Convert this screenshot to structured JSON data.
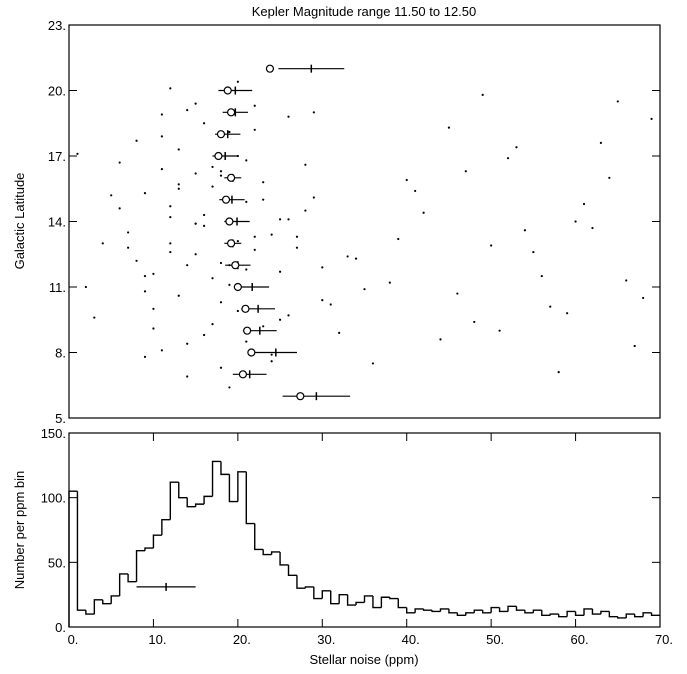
{
  "chart_data": [
    {
      "type": "scatter",
      "title": "Kepler Magnitude range 11.50 to 12.50",
      "y_label": "Galactic Latitude",
      "xlim": [
        0,
        70
      ],
      "ylim": [
        5,
        23
      ],
      "yticks": [
        {
          "value": 5,
          "label": "5."
        },
        {
          "value": 8,
          "label": "8."
        },
        {
          "value": 11,
          "label": "11."
        },
        {
          "value": 14,
          "label": "14."
        },
        {
          "value": 17,
          "label": "17."
        },
        {
          "value": 20,
          "label": "20."
        },
        {
          "value": 23,
          "label": "23."
        }
      ],
      "x": [
        12,
        15,
        18,
        9,
        22,
        25,
        11,
        14,
        17,
        20,
        8,
        13,
        16,
        19,
        23,
        27,
        10,
        12,
        21,
        24,
        7,
        15,
        18,
        26,
        30,
        11,
        14,
        19,
        22,
        9,
        13,
        16,
        20,
        28,
        33,
        12,
        17,
        21,
        25,
        8,
        10,
        15,
        18,
        23,
        31,
        14,
        19,
        22,
        6,
        11,
        16,
        20,
        24,
        35,
        13,
        17,
        21,
        9,
        12,
        15,
        18,
        26,
        29,
        38,
        42,
        45,
        48,
        52,
        55,
        58,
        62,
        65,
        68,
        40,
        44,
        50,
        53,
        57,
        61,
        66,
        69,
        36,
        39,
        47,
        51,
        56,
        60,
        63,
        67,
        34,
        41,
        46,
        49,
        54,
        59,
        64,
        4,
        2,
        5,
        3,
        1,
        7,
        6,
        26,
        28,
        32,
        30,
        27,
        24,
        22,
        20,
        17,
        14,
        11,
        9,
        13,
        16,
        19,
        23,
        10,
        12,
        15,
        18,
        21,
        25,
        29
      ],
      "y": [
        14.2,
        12.5,
        16.1,
        10.8,
        13.3,
        11.7,
        18.9,
        8.4,
        15.6,
        9.9,
        12.2,
        17.3,
        13.8,
        11.1,
        15.0,
        12.8,
        9.1,
        14.7,
        16.8,
        7.6,
        13.5,
        19.4,
        10.3,
        14.1,
        11.9,
        16.4,
        6.9,
        12.0,
        18.2,
        15.3,
        10.6,
        8.8,
        13.1,
        16.6,
        12.4,
        20.1,
        11.4,
        14.9,
        9.5,
        17.7,
        11.6,
        13.9,
        7.3,
        15.8,
        10.2,
        19.1,
        6.4,
        12.7,
        14.6,
        8.1,
        18.5,
        17.0,
        13.4,
        10.9,
        15.5,
        9.3,
        11.8,
        7.8,
        13.0,
        16.2,
        12.1,
        9.7,
        15.1,
        11.2,
        14.4,
        18.3,
        9.4,
        16.9,
        12.6,
        7.1,
        13.7,
        19.5,
        10.5,
        15.9,
        8.6,
        12.9,
        17.4,
        10.1,
        14.8,
        11.3,
        18.7,
        7.5,
        13.2,
        16.3,
        9.0,
        11.5,
        14.0,
        17.6,
        8.3,
        12.3,
        15.4,
        10.7,
        19.8,
        13.6,
        9.8,
        16.0,
        13.0,
        11.0,
        15.2,
        9.6,
        17.1,
        12.8,
        16.7,
        18.8,
        14.5,
        8.9,
        10.4,
        13.3,
        7.9,
        19.3,
        20.4,
        16.5,
        12.0,
        17.9,
        11.5,
        15.7,
        14.3,
        18.1,
        9.2,
        10.0,
        12.6,
        13.9,
        16.3,
        8.5,
        14.1,
        19.0
      ],
      "color": "#000000",
      "medians": {
        "latitude": [
          21,
          20,
          19,
          18,
          17,
          16,
          15,
          14,
          13,
          12,
          11,
          10,
          9,
          8,
          7,
          6
        ],
        "median": [
          23.8,
          18.8,
          19.2,
          18.0,
          17.7,
          19.2,
          18.6,
          19.0,
          19.2,
          19.7,
          20.0,
          20.9,
          21.1,
          21.6,
          20.6,
          27.4
        ],
        "mean": [
          28.7,
          19.7,
          19.7,
          18.8,
          18.5,
          19.4,
          19.3,
          19.9,
          19.4,
          20.0,
          21.7,
          22.4,
          22.6,
          24.5,
          21.4,
          29.3
        ],
        "spread": [
          3.9,
          2.0,
          1.5,
          1.5,
          1.5,
          1.0,
          1.5,
          1.5,
          1.0,
          1.5,
          2.0,
          2.0,
          2.0,
          2.5,
          2.0,
          4.0
        ]
      }
    },
    {
      "type": "histogram",
      "x_label": "Stellar noise (ppm)",
      "y_label": "Number per ppm bin",
      "xlim": [
        0,
        70
      ],
      "ylim": [
        0,
        150
      ],
      "xticks": [
        {
          "value": 0,
          "label": "0."
        },
        {
          "value": 10,
          "label": "10."
        },
        {
          "value": 20,
          "label": "20."
        },
        {
          "value": 30,
          "label": "30."
        },
        {
          "value": 40,
          "label": "40."
        },
        {
          "value": 50,
          "label": "50."
        },
        {
          "value": 60,
          "label": "60."
        },
        {
          "value": 70,
          "label": "70."
        }
      ],
      "yticks": [
        {
          "value": 0,
          "label": "0."
        },
        {
          "value": 50,
          "label": "50."
        },
        {
          "value": 100,
          "label": "100."
        },
        {
          "value": 150,
          "label": "150."
        }
      ],
      "bins": [
        0,
        1,
        2,
        3,
        4,
        5,
        6,
        7,
        8,
        9,
        10,
        11,
        12,
        13,
        14,
        15,
        16,
        17,
        18,
        19,
        20,
        21,
        22,
        23,
        24,
        25,
        26,
        27,
        28,
        29,
        30,
        31,
        32,
        33,
        34,
        35,
        36,
        37,
        38,
        39,
        40,
        41,
        42,
        43,
        44,
        45,
        46,
        47,
        48,
        49,
        50,
        51,
        52,
        53,
        54,
        55,
        56,
        57,
        58,
        59,
        60,
        61,
        62,
        63,
        64,
        65,
        66,
        67,
        68,
        69,
        70
      ],
      "counts": [
        105,
        13,
        10,
        21,
        18,
        24,
        41,
        35,
        59,
        61,
        71,
        83,
        112,
        100,
        93,
        95,
        101,
        128,
        118,
        97,
        120,
        80,
        60,
        56,
        58,
        48,
        40,
        30,
        31,
        22,
        28,
        18,
        25,
        17,
        19,
        24,
        15,
        23,
        22,
        15,
        11,
        14,
        13,
        12,
        14,
        11,
        9,
        11,
        13,
        11,
        15,
        12,
        16,
        13,
        11,
        13,
        9,
        10,
        8,
        12,
        9,
        14,
        10,
        12,
        8,
        7,
        10,
        8,
        11,
        9
      ],
      "color": "#000000",
      "summary": {
        "x": 11.5,
        "y": 31,
        "xerr": 3.5
      }
    }
  ]
}
